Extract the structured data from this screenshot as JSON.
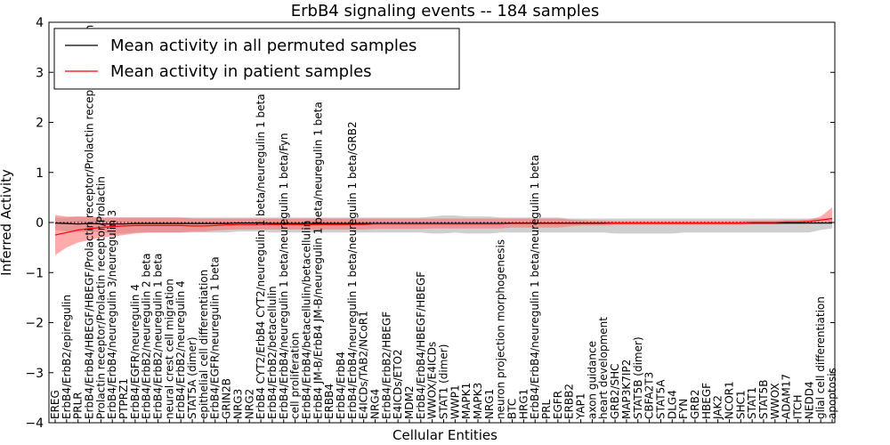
{
  "chart_data": {
    "type": "line",
    "title": "ErbB4 signaling events -- 184 samples",
    "xlabel": "Cellular Entities",
    "ylabel": "Inferred Activity",
    "ylim": [
      -4,
      4
    ],
    "yticks": [
      -4,
      -3,
      -2,
      -1,
      0,
      1,
      2,
      3,
      4
    ],
    "ytick_labels": [
      "−4",
      "−3",
      "−2",
      "−1",
      "0",
      "1",
      "2",
      "3",
      "4"
    ],
    "legend_position": "top-left",
    "colors": {
      "permuted": "#000000",
      "patient": "#ff0000",
      "permuted_band": "#bfbfbf",
      "patient_band": "#ff6666"
    },
    "categories": [
      "EREG",
      "ErbB4/ErbB2/epiregulin",
      "PRLR",
      "ErbB4/ErbB4/HBEGF/HBEGF/Prolactin receptor/Prolactin receptor/Prolactin",
      "Prolactin receptor/Prolactin receptor/Prolactin",
      "ErbB4/ErbB4/neuregulin 3/neuregulin 3",
      "PTPRZ1",
      "ErbB4/EGFR/neuregulin 4",
      "ErbB4/ErbB2/neuregulin 2 beta",
      "ErbB4/ErbB2/neuregulin 1 beta",
      "neural crest cell migration",
      "ErbB4/ErbB2/neuregulin 4",
      "STAT5A (dimer)",
      "epithelial cell differentiation",
      "ErbB4/EGFR/neuregulin 1 beta",
      "GRIN2B",
      "NRG3",
      "NRG2",
      "ErbB4 CYT2/ErbB4 CYT2/neuregulin 1 beta/neuregulin 1 beta",
      "ErbB4/ErbB2/betacellulin",
      "ErbB4/ErbB4/neuregulin 1 beta/neuregulin 1 beta/Fyn",
      "cell proliferation",
      "ErbB4/ErbB4/betacellulin/betacellulin",
      "ErbB4 JM-B/ErbB4 JM-B/neuregulin 1 beta/neuregulin 1 beta",
      "ERBB4",
      "ErbB4/ErbB4",
      "ErbB4/ErbB4/neuregulin 1 beta/neuregulin 1 beta/GRB2",
      "E4ICDs/TAB2/NCoR1",
      "NRG4",
      "ErbB4/ErbB2/HBEGF",
      "E4ICDs/ETO2",
      "MDM2",
      "ErbB4/ErbB4/HBEGF/HBEGF",
      "WWOX/E4ICDs",
      "STAT1 (dimer)",
      "WWP1",
      "MAPK1",
      "MAPK3",
      "NRG1",
      "neuron projection morphogenesis",
      "BTC",
      "HRG1",
      "ErbB4/ErbB4/neuregulin 1 beta/neuregulin 1 beta",
      "PRL",
      "EGFR",
      "ERBB2",
      "YAP1",
      "axon guidance",
      "heart development",
      "GRB2/SHC",
      "MAP3K7IP2",
      "STAT5B (dimer)",
      "CBFA2T3",
      "STAT5A",
      "DLG4",
      "FYN",
      "GRB2",
      "HBEGF",
      "JAK2",
      "NCOR1",
      "SHC1",
      "STAT1",
      "STAT5B",
      "WWOX",
      "ADAM17",
      "ITCH",
      "NEDD4",
      "glial cell differentiation",
      "apoptosis"
    ],
    "series": [
      {
        "name": "Mean activity in all permuted samples",
        "color": "#000000",
        "values": [
          -0.01,
          -0.02,
          -0.03,
          -0.02,
          -0.03,
          -0.03,
          -0.03,
          -0.02,
          -0.02,
          -0.02,
          -0.02,
          -0.02,
          -0.02,
          -0.02,
          -0.02,
          -0.02,
          -0.01,
          -0.01,
          -0.01,
          -0.02,
          -0.02,
          -0.02,
          -0.02,
          -0.02,
          -0.02,
          -0.02,
          -0.02,
          -0.02,
          -0.02,
          -0.02,
          -0.02,
          -0.02,
          -0.02,
          -0.02,
          -0.02,
          -0.02,
          -0.02,
          -0.02,
          -0.02,
          -0.02,
          -0.01,
          -0.01,
          -0.01,
          -0.01,
          -0.01,
          -0.01,
          -0.01,
          -0.01,
          -0.01,
          -0.01,
          -0.01,
          -0.01,
          -0.01,
          -0.01,
          -0.01,
          -0.01,
          -0.01,
          -0.01,
          -0.01,
          -0.01,
          -0.01,
          -0.01,
          -0.01,
          -0.01,
          -0.01,
          -0.01,
          -0.01,
          -0.01,
          -0.01
        ],
        "lower": [
          -0.15,
          -0.18,
          -0.2,
          -0.18,
          -0.2,
          -0.22,
          -0.22,
          -0.2,
          -0.2,
          -0.2,
          -0.2,
          -0.2,
          -0.2,
          -0.2,
          -0.2,
          -0.2,
          -0.18,
          -0.18,
          -0.18,
          -0.2,
          -0.2,
          -0.2,
          -0.2,
          -0.2,
          -0.2,
          -0.2,
          -0.2,
          -0.2,
          -0.2,
          -0.2,
          -0.2,
          -0.2,
          -0.2,
          -0.22,
          -0.22,
          -0.2,
          -0.22,
          -0.22,
          -0.22,
          -0.2,
          -0.2,
          -0.2,
          -0.2,
          -0.2,
          -0.2,
          -0.2,
          -0.2,
          -0.2,
          -0.2,
          -0.22,
          -0.22,
          -0.22,
          -0.22,
          -0.22,
          -0.22,
          -0.2,
          -0.2,
          -0.2,
          -0.2,
          -0.2,
          -0.2,
          -0.2,
          -0.2,
          -0.2,
          -0.2,
          -0.2,
          -0.2,
          -0.15,
          -0.12
        ],
        "upper": [
          0.1,
          0.1,
          0.12,
          0.1,
          0.1,
          0.1,
          0.1,
          0.1,
          0.1,
          0.1,
          0.1,
          0.1,
          0.1,
          0.1,
          0.1,
          0.1,
          0.1,
          0.1,
          0.1,
          0.1,
          0.1,
          0.1,
          0.1,
          0.1,
          0.1,
          0.1,
          0.1,
          0.1,
          0.1,
          0.1,
          0.1,
          0.1,
          0.1,
          0.12,
          0.14,
          0.14,
          0.12,
          0.12,
          0.12,
          0.1,
          0.1,
          0.1,
          0.1,
          0.1,
          0.1,
          0.08,
          0.08,
          0.08,
          0.08,
          0.08,
          0.08,
          0.08,
          0.08,
          0.08,
          0.08,
          0.08,
          0.08,
          0.08,
          0.08,
          0.08,
          0.08,
          0.08,
          0.08,
          0.08,
          0.08,
          0.08,
          0.08,
          0.08,
          0.08
        ]
      },
      {
        "name": "Mean activity in patient samples",
        "color": "#ff0000",
        "values": [
          -0.25,
          -0.2,
          -0.15,
          -0.12,
          -0.1,
          -0.08,
          -0.07,
          -0.06,
          -0.06,
          -0.06,
          -0.06,
          -0.06,
          -0.07,
          -0.07,
          -0.06,
          -0.05,
          -0.04,
          -0.04,
          -0.04,
          -0.04,
          -0.04,
          -0.04,
          -0.04,
          -0.04,
          -0.04,
          -0.04,
          -0.04,
          -0.04,
          -0.03,
          -0.03,
          -0.03,
          -0.03,
          -0.03,
          -0.03,
          -0.03,
          -0.03,
          -0.03,
          -0.03,
          -0.03,
          -0.03,
          -0.02,
          -0.02,
          -0.02,
          -0.02,
          -0.02,
          -0.02,
          -0.02,
          -0.02,
          -0.02,
          -0.01,
          -0.01,
          -0.01,
          -0.01,
          -0.01,
          -0.01,
          -0.01,
          -0.01,
          -0.01,
          -0.01,
          -0.01,
          -0.01,
          0.0,
          0.0,
          0.0,
          0.01,
          0.01,
          0.02,
          0.05,
          0.08
        ],
        "lower": [
          -0.65,
          -0.5,
          -0.4,
          -0.35,
          -0.3,
          -0.28,
          -0.25,
          -0.22,
          -0.2,
          -0.2,
          -0.2,
          -0.2,
          -0.18,
          -0.18,
          -0.16,
          -0.15,
          -0.14,
          -0.14,
          -0.14,
          -0.14,
          -0.14,
          -0.14,
          -0.14,
          -0.14,
          -0.14,
          -0.14,
          -0.14,
          -0.14,
          -0.13,
          -0.13,
          -0.13,
          -0.13,
          -0.13,
          -0.12,
          -0.12,
          -0.12,
          -0.12,
          -0.12,
          -0.12,
          -0.12,
          -0.1,
          -0.1,
          -0.1,
          -0.1,
          -0.1,
          -0.08,
          -0.06,
          -0.06,
          -0.06,
          -0.05,
          -0.05,
          -0.05,
          -0.05,
          -0.05,
          -0.05,
          -0.05,
          -0.05,
          -0.05,
          -0.05,
          -0.05,
          -0.05,
          -0.04,
          -0.04,
          -0.04,
          -0.03,
          -0.03,
          -0.02,
          -0.02,
          0.0
        ],
        "upper": [
          0.15,
          0.12,
          0.12,
          0.12,
          0.1,
          0.1,
          0.1,
          0.1,
          0.1,
          0.1,
          0.1,
          0.1,
          0.08,
          0.08,
          0.08,
          0.08,
          0.08,
          0.08,
          0.08,
          0.08,
          0.08,
          0.08,
          0.08,
          0.08,
          0.08,
          0.08,
          0.08,
          0.08,
          0.08,
          0.08,
          0.08,
          0.08,
          0.08,
          0.08,
          0.08,
          0.08,
          0.08,
          0.08,
          0.08,
          0.08,
          0.08,
          0.08,
          0.08,
          0.08,
          0.08,
          0.06,
          0.05,
          0.04,
          0.04,
          0.03,
          0.03,
          0.03,
          0.03,
          0.03,
          0.03,
          0.03,
          0.03,
          0.03,
          0.03,
          0.03,
          0.03,
          0.04,
          0.04,
          0.04,
          0.05,
          0.05,
          0.06,
          0.12,
          0.3
        ]
      }
    ]
  }
}
